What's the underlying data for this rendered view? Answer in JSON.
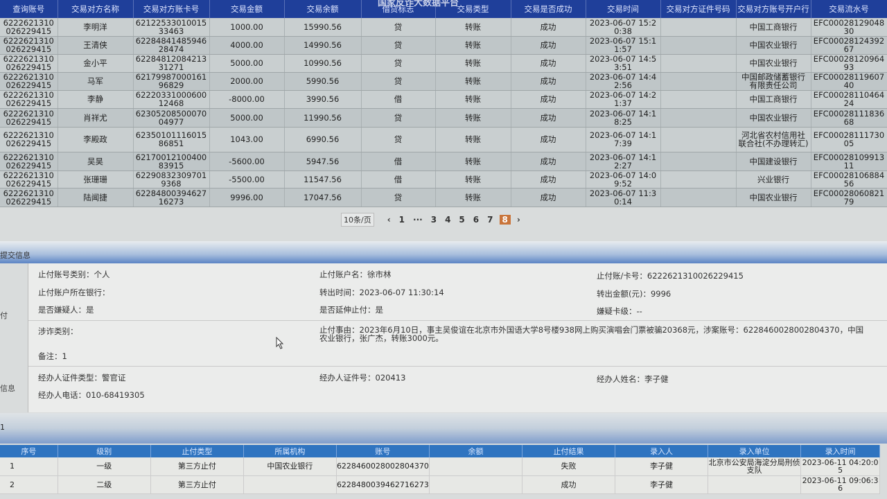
{
  "watermark": "国家反诈大数据平台",
  "top_table": {
    "headers": [
      "查询账号",
      "交易对方名称",
      "交易对方账卡号",
      "交易金额",
      "交易余额",
      "借贷标志",
      "交易类型",
      "交易是否成功",
      "交易时间",
      "交易对方证件号码",
      "交易对方账号开户行",
      "交易流水号"
    ],
    "rows": [
      [
        "6222621310026229415",
        "李明洋",
        "6212253301001533463",
        "1000.00",
        "15990.56",
        "贷",
        "转账",
        "成功",
        "2023-06-07 15:20:38",
        "",
        "中国工商银行",
        "EFC0002812904830"
      ],
      [
        "6222621310026229415",
        "王清侠",
        "6228484148594628474",
        "4000.00",
        "14990.56",
        "贷",
        "转账",
        "成功",
        "2023-06-07 15:11:57",
        "",
        "中国农业银行",
        "EFC0002812439267"
      ],
      [
        "6222621310026229415",
        "金小平",
        "6228481208421331271",
        "5000.00",
        "10990.56",
        "贷",
        "转账",
        "成功",
        "2023-06-07 14:53:51",
        "",
        "中国农业银行",
        "EFC0002812096493"
      ],
      [
        "6222621310026229415",
        "马军",
        "6217998700016196829",
        "2000.00",
        "5990.56",
        "贷",
        "转账",
        "成功",
        "2023-06-07 14:42:56",
        "",
        "中国邮政储蓄银行有限责任公司",
        "EFC0002811960740"
      ],
      [
        "6222621310026229415",
        "李静",
        "6222033100060012468",
        "-8000.00",
        "3990.56",
        "借",
        "转账",
        "成功",
        "2023-06-07 14:21:37",
        "",
        "中国工商银行",
        "EFC0002811046424"
      ],
      [
        "6222621310026229415",
        "肖祥尤",
        "6230520850007004977",
        "5000.00",
        "11990.56",
        "贷",
        "转账",
        "成功",
        "2023-06-07 14:18:25",
        "",
        "中国农业银行",
        "EFC0002811183668"
      ],
      [
        "6222621310026229415",
        "李殿政",
        "6235010111601586851",
        "1043.00",
        "6990.56",
        "贷",
        "转账",
        "成功",
        "2023-06-07 14:17:39",
        "",
        "河北省农村信用社联合社(不办理转汇)",
        "EFC0002811173005"
      ],
      [
        "6222621310026229415",
        "吴昊",
        "6217001210040083915",
        "-5600.00",
        "5947.56",
        "借",
        "转账",
        "成功",
        "2023-06-07 14:12:27",
        "",
        "中国建设银行",
        "EFC0002810991311"
      ],
      [
        "6222621310026229415",
        "张珊珊",
        "622908323097019368",
        "-5500.00",
        "11547.56",
        "借",
        "转账",
        "成功",
        "2023-06-07 14:09:52",
        "",
        "兴业银行",
        "EFC0002810688456"
      ],
      [
        "6222621310026229415",
        "陆闻捷",
        "6228480039462716273",
        "9996.00",
        "17047.56",
        "贷",
        "转账",
        "成功",
        "2023-06-07 11:30:14",
        "",
        "中国农业银行",
        "EFC0002806082179"
      ]
    ]
  },
  "pager": {
    "page_size": "10条/页",
    "pages": [
      "1",
      "···",
      "3",
      "4",
      "5",
      "6",
      "7",
      "8"
    ],
    "current": "8"
  },
  "submit_section": {
    "title": "提交信息",
    "side_label_1": "付",
    "side_label_2": "信息",
    "fields": {
      "acct_type": "止付账号类别：个人",
      "acct_name": "止付账户名：徐市林",
      "acct_no": "止付账/卡号：6222621310026229415",
      "bank": "止付账户所在银行：",
      "out_time": "转出时间：2023-06-07 11:30:14",
      "out_amount": "转出金额(元)：9996",
      "suspect": "是否嫌疑人：是",
      "extend": "是否延伸止付：是",
      "level": "嫌疑卡级：--",
      "fraud_type": "涉诈类别：",
      "reason": "止付事由：2023年6月10日，事主吴俊谊在北京市外国语大学8号楼938网上购买演唱会门票被骗20368元，涉案账号：6228460028002804370，中国农业银行，张广杰，转账3000元。",
      "remark": "备注：1",
      "officer_id_type": "经办人证件类型：警官证",
      "officer_id": "经办人证件号：020413",
      "officer_name": "经办人姓名：李子健",
      "officer_phone": "经办人电话：010-68419305"
    }
  },
  "bottom_section": {
    "title": "1"
  },
  "bottom_table": {
    "headers": [
      "序号",
      "级别",
      "止付类型",
      "所属机构",
      "账号",
      "余额",
      "止付结果",
      "录入人",
      "录入单位",
      "录入时间"
    ],
    "rows": [
      [
        "1",
        "一级",
        "第三方止付",
        "中国农业银行",
        "6228460028002804370",
        "",
        "失败",
        "李子健",
        "北京市公安局海淀分局刑侦支队",
        "2023-06-11 04:20:05"
      ],
      [
        "2",
        "二级",
        "第三方止付",
        "",
        "6228480039462716273",
        "",
        "成功",
        "李子健",
        "",
        "2023-06-11 09:06:36"
      ]
    ]
  },
  "colors": {
    "header_blue": "#1f3f9a",
    "bottom_header_blue": "#2f74c0",
    "current_page": "#c9743a"
  }
}
